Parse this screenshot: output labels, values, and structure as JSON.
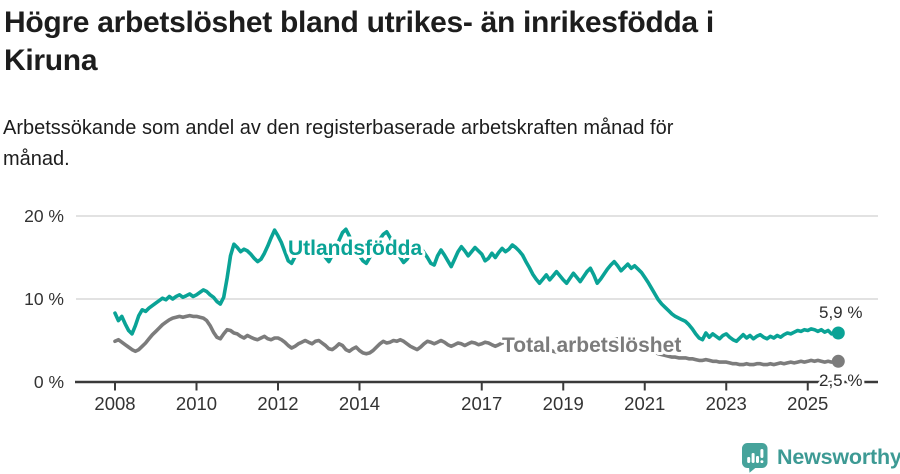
{
  "header": {
    "title_lines": [
      "Högre arbetslöshet bland utrikes- än inrikesfödda i",
      "Kiruna"
    ],
    "subtitle_lines": [
      "Arbetssökande som andel av den registerbaserade arbetskraften månad för",
      "månad."
    ]
  },
  "chart_data": {
    "type": "line",
    "title": "Högre arbetslöshet bland utrikes- än inrikesfödda i Kiruna",
    "ylabel": "",
    "xlabel": "",
    "unit": "%",
    "x_unit": "month",
    "x_range": [
      "2008-01",
      "2025-10"
    ],
    "ylim": [
      0,
      21
    ],
    "grid": true,
    "legend_position": "inline-labels",
    "x_ticks": [
      2008,
      2010,
      2012,
      2014,
      2017,
      2019,
      2021,
      2023,
      2025
    ],
    "y_ticks": [
      {
        "value": 0,
        "label": "0 %"
      },
      {
        "value": 10,
        "label": "10 %"
      },
      {
        "value": 20,
        "label": "20 %"
      }
    ],
    "axis_color": "#3a3a3a",
    "grid_color": "#d9d9d9",
    "series": [
      {
        "name": "Utlandsfödda",
        "color": "#0aa396",
        "end_label": "5,9 %",
        "end_value": 5.9,
        "values": [
          8.3,
          7.4,
          7.9,
          7.0,
          6.2,
          5.8,
          6.8,
          8.0,
          8.7,
          8.5,
          8.9,
          9.2,
          9.5,
          9.8,
          10.1,
          9.9,
          10.3,
          10.0,
          10.3,
          10.5,
          10.2,
          10.4,
          10.6,
          10.3,
          10.5,
          10.8,
          11.1,
          10.9,
          10.5,
          10.2,
          9.7,
          9.4,
          10.2,
          12.5,
          15.2,
          16.6,
          16.2,
          15.7,
          16.0,
          15.8,
          15.4,
          14.9,
          14.5,
          14.8,
          15.5,
          16.4,
          17.4,
          18.3,
          17.6,
          16.8,
          15.7,
          14.6,
          14.3,
          15.1,
          16.0,
          16.7,
          16.1,
          15.5,
          16.3,
          16.9,
          16.4,
          15.7,
          15.0,
          14.5,
          15.3,
          16.2,
          17.1,
          18.0,
          18.4,
          17.6,
          16.6,
          15.8,
          15.2,
          14.6,
          14.3,
          15.0,
          15.8,
          16.5,
          17.2,
          17.8,
          18.1,
          17.4,
          16.5,
          15.7,
          15.0,
          14.4,
          14.8,
          15.5,
          16.1,
          16.6,
          16.2,
          15.6,
          15.0,
          14.3,
          14.1,
          15.2,
          15.9,
          15.3,
          14.6,
          13.9,
          14.8,
          15.7,
          16.3,
          15.8,
          15.2,
          15.7,
          16.2,
          15.8,
          15.4,
          14.6,
          14.9,
          15.5,
          15.0,
          15.6,
          16.1,
          15.7,
          16.0,
          16.5,
          16.2,
          15.8,
          15.3,
          14.5,
          13.8,
          13.0,
          12.4,
          11.9,
          12.4,
          12.9,
          12.3,
          12.8,
          13.3,
          12.8,
          12.3,
          11.9,
          12.5,
          13.1,
          12.6,
          12.1,
          12.7,
          13.3,
          13.7,
          12.9,
          11.9,
          12.4,
          13.0,
          13.6,
          14.1,
          14.5,
          14.0,
          13.4,
          13.8,
          14.2,
          13.7,
          14.0,
          13.6,
          13.2,
          12.6,
          12.0,
          11.3,
          10.6,
          9.9,
          9.4,
          9.0,
          8.6,
          8.2,
          7.9,
          7.7,
          7.5,
          7.3,
          6.9,
          6.4,
          5.8,
          5.3,
          5.1,
          5.9,
          5.4,
          5.8,
          5.5,
          5.2,
          5.6,
          5.8,
          5.4,
          5.1,
          4.9,
          5.3,
          5.7,
          5.3,
          5.6,
          5.2,
          5.5,
          5.7,
          5.4,
          5.2,
          5.5,
          5.3,
          5.6,
          5.4,
          5.7,
          5.9,
          5.8,
          6.0,
          6.2,
          6.1,
          6.3,
          6.2,
          6.4,
          6.3,
          6.1,
          6.3,
          6.0,
          6.2,
          5.8,
          6.0,
          5.9
        ]
      },
      {
        "name": "Total arbetslöshet",
        "color": "#7c7c7c",
        "end_label": "2,5 %",
        "end_value": 2.5,
        "values": [
          4.9,
          5.1,
          4.8,
          4.5,
          4.2,
          3.9,
          3.7,
          3.9,
          4.3,
          4.7,
          5.2,
          5.7,
          6.1,
          6.5,
          6.9,
          7.2,
          7.5,
          7.7,
          7.8,
          7.9,
          7.8,
          7.9,
          8.0,
          7.9,
          7.9,
          7.8,
          7.7,
          7.4,
          6.8,
          6.0,
          5.4,
          5.2,
          5.8,
          6.3,
          6.2,
          5.9,
          5.8,
          5.5,
          5.3,
          5.6,
          5.4,
          5.2,
          5.1,
          5.3,
          5.5,
          5.2,
          5.1,
          5.3,
          5.3,
          5.1,
          4.8,
          4.4,
          4.1,
          4.3,
          4.6,
          4.8,
          5.0,
          4.8,
          4.6,
          4.9,
          5.0,
          4.7,
          4.4,
          4.0,
          3.9,
          4.2,
          4.6,
          4.4,
          3.9,
          3.7,
          4.0,
          4.2,
          3.8,
          3.5,
          3.4,
          3.5,
          3.8,
          4.2,
          4.6,
          4.9,
          4.7,
          4.8,
          5.0,
          4.9,
          5.1,
          4.9,
          4.6,
          4.3,
          4.1,
          3.9,
          4.2,
          4.6,
          4.9,
          4.8,
          4.6,
          4.8,
          5.0,
          4.8,
          4.5,
          4.3,
          4.5,
          4.7,
          4.6,
          4.4,
          4.6,
          4.8,
          4.7,
          4.5,
          4.6,
          4.8,
          4.7,
          4.5,
          4.3,
          4.5,
          4.7,
          4.8,
          4.6,
          4.4,
          4.5,
          4.6,
          4.4,
          4.2,
          4.0,
          3.9,
          3.7,
          3.6,
          3.8,
          4.0,
          3.9,
          3.7,
          3.6,
          3.8,
          3.9,
          4.0,
          4.1,
          4.0,
          3.8,
          3.7,
          3.9,
          4.1,
          4.0,
          3.8,
          3.9,
          4.0,
          4.2,
          4.4,
          4.8,
          5.1,
          5.2,
          5.1,
          5.0,
          4.8,
          4.6,
          4.4,
          4.3,
          4.2,
          4.0,
          3.9,
          3.7,
          3.6,
          3.4,
          3.3,
          3.2,
          3.1,
          3.0,
          3.0,
          2.9,
          2.9,
          2.9,
          2.8,
          2.8,
          2.7,
          2.6,
          2.6,
          2.7,
          2.6,
          2.5,
          2.5,
          2.4,
          2.4,
          2.4,
          2.3,
          2.2,
          2.2,
          2.1,
          2.1,
          2.2,
          2.1,
          2.1,
          2.2,
          2.2,
          2.1,
          2.1,
          2.2,
          2.1,
          2.2,
          2.3,
          2.2,
          2.3,
          2.4,
          2.3,
          2.4,
          2.5,
          2.4,
          2.5,
          2.6,
          2.5,
          2.6,
          2.5,
          2.4,
          2.5,
          2.4,
          2.4,
          2.5
        ]
      }
    ]
  },
  "footer": {
    "brand": "Newsworthy",
    "brand_color": "#3d9a94",
    "logo_icon": "bar-chart-pin-icon"
  }
}
